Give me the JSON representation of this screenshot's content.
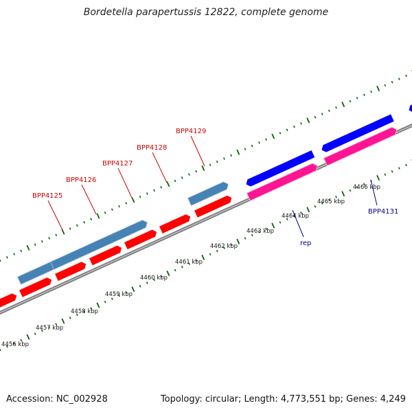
{
  "title": "Bordetella parapertussis 12822, complete genome",
  "footer": {
    "accession_label": "Accession: NC_002928",
    "topology_label": "Topology: circular; Length: 4,773,551 bp; Genes: 4,249"
  },
  "ruler_ticks": [
    {
      "label": "4456 kbp"
    },
    {
      "label": "4457 kbp"
    },
    {
      "label": "4458 kbp"
    },
    {
      "label": "4459 kbp"
    },
    {
      "label": "4460 kbp"
    },
    {
      "label": "4461 kbp"
    },
    {
      "label": "4462 kbp"
    },
    {
      "label": "4463 kbp"
    },
    {
      "label": "4464 kbp"
    },
    {
      "label": "4465 kbp"
    },
    {
      "label": "4466 kbp"
    }
  ],
  "gene_labels": [
    {
      "text": "BPP4125"
    },
    {
      "text": "BPP4126"
    },
    {
      "text": "BPP4127"
    },
    {
      "text": "BPP4128"
    },
    {
      "text": "BPP4129"
    },
    {
      "text": "rep"
    },
    {
      "text": "BPP4131"
    }
  ],
  "colors": {
    "forward_gene": "#ff0000",
    "reverse_gene": "#0000ff",
    "forward_cds_feature": "#4682b4",
    "overlap_feature": "#483d8b",
    "reverse_feature": "#ff1493",
    "backbone": "#808080",
    "tick": "#006400",
    "forward_label": "#cc0000",
    "reverse_label": "#00008b"
  }
}
